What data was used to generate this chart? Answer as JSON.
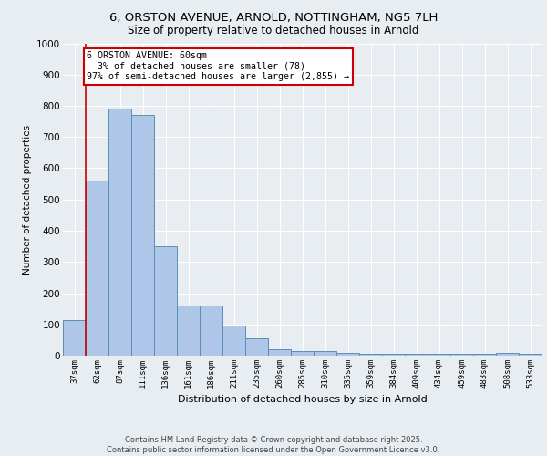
{
  "title_line1": "6, ORSTON AVENUE, ARNOLD, NOTTINGHAM, NG5 7LH",
  "title_line2": "Size of property relative to detached houses in Arnold",
  "xlabel": "Distribution of detached houses by size in Arnold",
  "ylabel": "Number of detached properties",
  "categories": [
    "37sqm",
    "62sqm",
    "87sqm",
    "111sqm",
    "136sqm",
    "161sqm",
    "186sqm",
    "211sqm",
    "235sqm",
    "260sqm",
    "285sqm",
    "310sqm",
    "335sqm",
    "359sqm",
    "384sqm",
    "409sqm",
    "434sqm",
    "459sqm",
    "483sqm",
    "508sqm",
    "533sqm"
  ],
  "values": [
    115,
    560,
    790,
    770,
    350,
    160,
    160,
    95,
    55,
    20,
    15,
    15,
    10,
    5,
    5,
    5,
    5,
    5,
    5,
    10,
    5
  ],
  "bar_color": "#aec6e8",
  "bar_edge_color": "#5b8db8",
  "annotation_text": "6 ORSTON AVENUE: 60sqm\n← 3% of detached houses are smaller (78)\n97% of semi-detached houses are larger (2,855) →",
  "annotation_box_color": "#ffffff",
  "annotation_box_edge_color": "#cc0000",
  "vline_x_index": 1,
  "vline_color": "#cc0000",
  "ylim": [
    0,
    1000
  ],
  "yticks": [
    0,
    100,
    200,
    300,
    400,
    500,
    600,
    700,
    800,
    900,
    1000
  ],
  "bg_color": "#e8edf2",
  "plot_bg_color": "#e8edf2",
  "grid_color": "#ffffff",
  "footer_line1": "Contains HM Land Registry data © Crown copyright and database right 2025.",
  "footer_line2": "Contains public sector information licensed under the Open Government Licence v3.0."
}
